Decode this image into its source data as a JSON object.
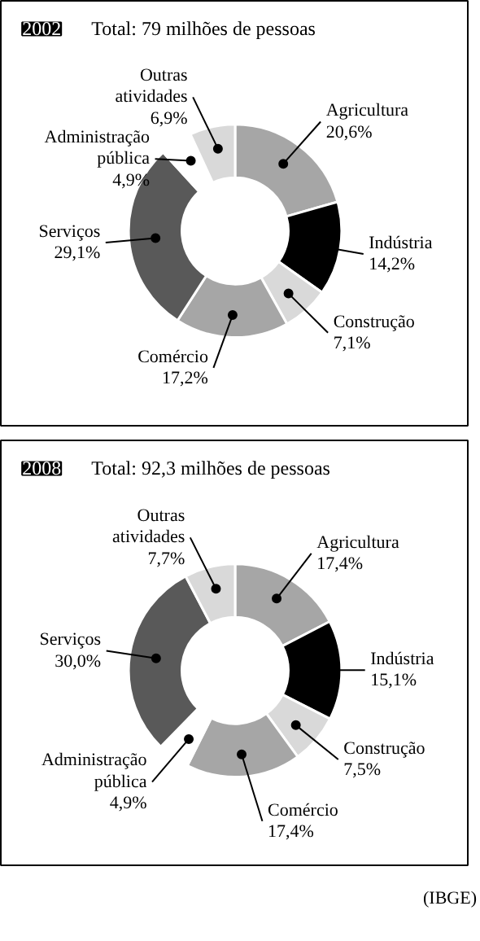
{
  "chart_data": [
    {
      "type": "donut",
      "title": "2002",
      "subtitle": "Total: 79 milhões de pessoas",
      "categories": [
        "Agricultura",
        "Indústria",
        "Construção",
        "Comércio",
        "Serviços",
        "Administração pública",
        "Outras atividades"
      ],
      "values": [
        20.6,
        14.2,
        7.1,
        17.2,
        29.1,
        4.9,
        6.9
      ],
      "value_labels": [
        "20,6%",
        "14,2%",
        "7,1%",
        "17,2%",
        "29,1%",
        "4,9%",
        "6,9%"
      ],
      "colors": [
        "#a6a6a6",
        "#000000",
        "#d9d9d9",
        "#a6a6a6",
        "#595959",
        "#ffffff",
        "#d9d9d9"
      ]
    },
    {
      "type": "donut",
      "title": "2008",
      "subtitle": "Total: 92,3 milhões de pessoas",
      "categories": [
        "Agricultura",
        "Indústria",
        "Construção",
        "Comércio",
        "Administração pública",
        "Serviços",
        "Outras atividades"
      ],
      "values": [
        17.4,
        15.1,
        7.5,
        17.4,
        4.9,
        30.0,
        7.7
      ],
      "value_labels": [
        "17,4%",
        "15,1%",
        "7,5%",
        "17,4%",
        "4,9%",
        "30,0%",
        "7,7%"
      ],
      "colors": [
        "#a6a6a6",
        "#000000",
        "#d9d9d9",
        "#a6a6a6",
        "#ffffff",
        "#595959",
        "#d9d9d9"
      ],
      "annotations": [
        "(IBGE)"
      ]
    }
  ]
}
